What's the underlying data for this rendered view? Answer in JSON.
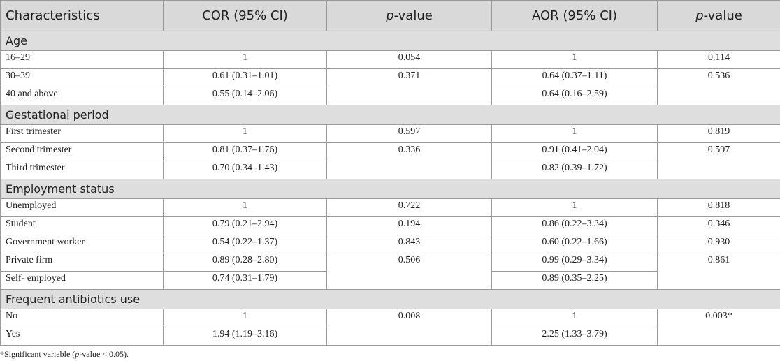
{
  "table": {
    "columns": [
      {
        "text": "Characteristics"
      },
      {
        "text": "COR (95% CI)"
      },
      {
        "italic": "p",
        "text": "-value"
      },
      {
        "text": "AOR (95% CI)"
      },
      {
        "italic": "p",
        "text": "-value"
      }
    ],
    "sections": [
      {
        "title": "Age",
        "rows": [
          [
            "16–29",
            "1",
            "0.054",
            "1",
            "0.114"
          ],
          [
            "30–39",
            "0.61 (0.31–1.01)",
            "0.371",
            "0.64 (0.37–1.11)",
            "0.536"
          ],
          [
            "40 and above",
            "0.55 (0.14–2.06)",
            null,
            "0.64 (0.16–2.59)",
            null
          ]
        ]
      },
      {
        "title": "Gestational period",
        "rows": [
          [
            "First trimester",
            "1",
            "0.597",
            "1",
            "0.819"
          ],
          [
            "Second trimester",
            "0.81 (0.37–1.76)",
            "0.336",
            "0.91 (0.41–2.04)",
            "0.597"
          ],
          [
            "Third trimester",
            "0.70 (0.34–1.43)",
            null,
            "0.82 (0.39–1.72)",
            null
          ]
        ]
      },
      {
        "title": "Employment status",
        "rows": [
          [
            "Unemployed",
            "1",
            "0.722",
            "1",
            "0.818"
          ],
          [
            "Student",
            "0.79 (0.21–2.94)",
            "0.194",
            "0.86 (0.22–3.34)",
            "0.346"
          ],
          [
            "Government worker",
            "0.54 (0.22–1.37)",
            "0.843",
            "0.60 (0.22–1.66)",
            "0.930"
          ],
          [
            "Private firm",
            "0.89 (0.28–2.80)",
            "0.506",
            "0.99 (0.29–3.34)",
            "0.861"
          ],
          [
            "Self- employed",
            "0.74 (0.31–1.79)",
            null,
            "0.89 (0.35–2.25)",
            null
          ]
        ]
      },
      {
        "title": "Frequent antibiotics use",
        "rows": [
          [
            "No",
            "1",
            "0.008",
            "1",
            "0.003*"
          ],
          [
            "Yes",
            "1.94 (1.19–3.16)",
            null,
            "2.25 (1.33–3.79)",
            null
          ]
        ]
      }
    ],
    "footnote": [
      "*Significant variable (",
      "p",
      "-value < 0.05)."
    ]
  }
}
